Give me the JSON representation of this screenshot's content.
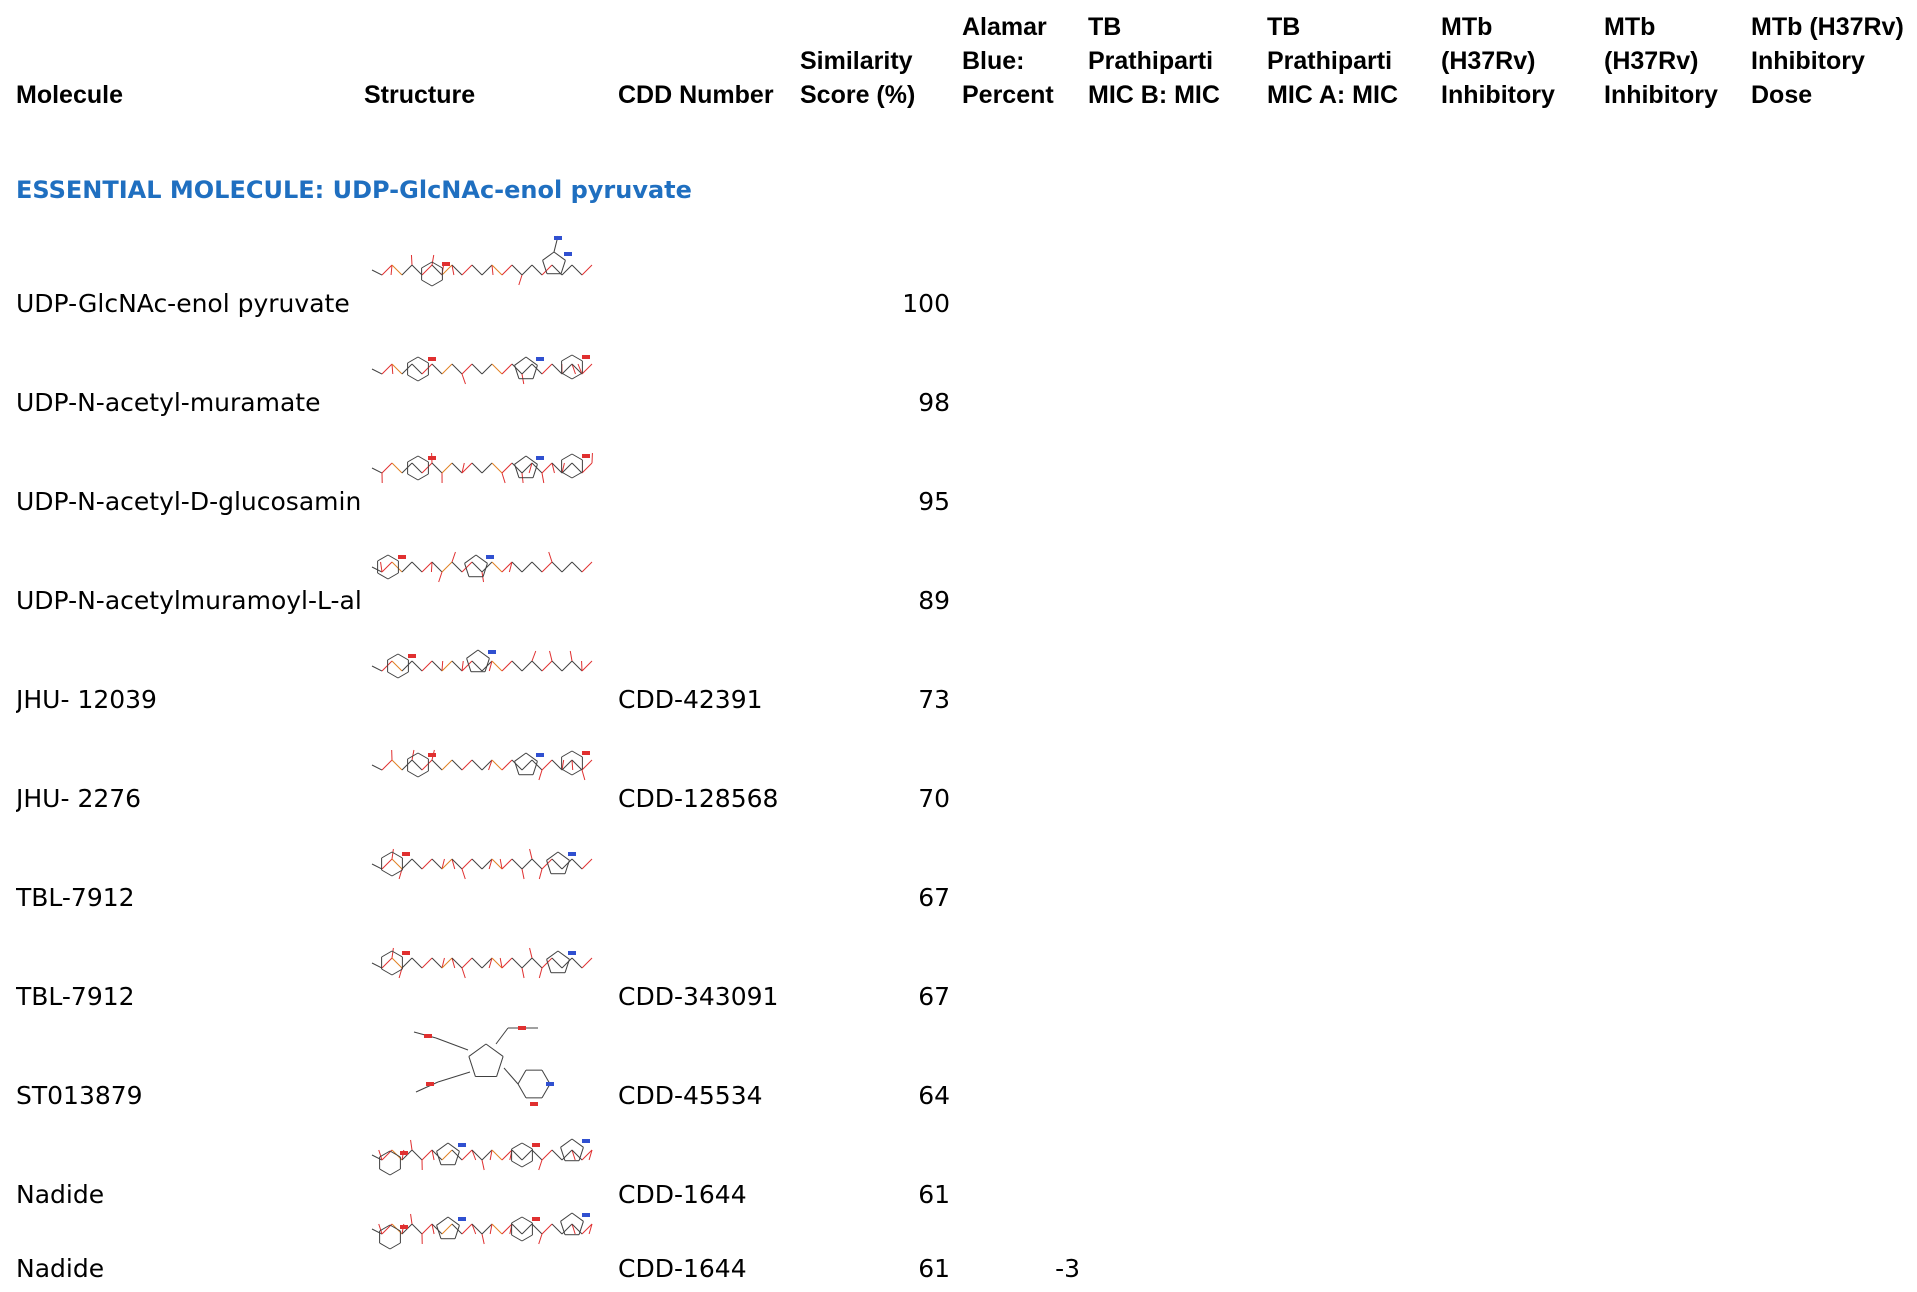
{
  "headers": {
    "molecule": [
      "Molecule"
    ],
    "structure": [
      "Structure"
    ],
    "cdd_number": [
      "CDD Number"
    ],
    "similarity": [
      "Similarity",
      "Score (%)"
    ],
    "alamar": [
      "Alamar",
      "Blue:",
      "Percent"
    ],
    "tb_mic_b": [
      "TB",
      "Prathiparti",
      "MIC B: MIC"
    ],
    "tb_mic_a": [
      "TB",
      "Prathiparti",
      "MIC A: MIC"
    ],
    "mtb_inhib_1": [
      "MTb",
      "(H37Rv)",
      "Inhibitory"
    ],
    "mtb_inhib_2": [
      "MTb",
      "(H37Rv)",
      "Inhibitory"
    ],
    "mtb_dose": [
      "MTb (H37Rv)",
      "Inhibitory",
      "Dose"
    ]
  },
  "section_title": "ESSENTIAL MOLECULE: UDP-GlcNAc-enol pyruvate",
  "rows": [
    {
      "molecule": "UDP-GlcNAc-enol pyruvate",
      "structure_icon": "molecule-structure-icon",
      "cdd": "",
      "similarity": "100",
      "alamar": ""
    },
    {
      "molecule": "UDP-N-acetyl-muramate",
      "structure_icon": "molecule-structure-icon",
      "cdd": "",
      "similarity": "98",
      "alamar": ""
    },
    {
      "molecule": "UDP-N-acetyl-D-glucosamine",
      "structure_icon": "molecule-structure-icon",
      "cdd": "",
      "similarity": "95",
      "alamar": ""
    },
    {
      "molecule": "UDP-N-acetylmuramoyl-L-ala",
      "structure_icon": "molecule-structure-icon",
      "cdd": "",
      "similarity": "89",
      "alamar": ""
    },
    {
      "molecule": "JHU- 12039",
      "structure_icon": "molecule-structure-icon",
      "cdd": "CDD-42391",
      "similarity": "73",
      "alamar": ""
    },
    {
      "molecule": "JHU- 2276",
      "structure_icon": "molecule-structure-icon",
      "cdd": "CDD-128568",
      "similarity": "70",
      "alamar": ""
    },
    {
      "molecule": "TBL-7912",
      "structure_icon": "molecule-structure-icon",
      "cdd": "",
      "similarity": "67",
      "alamar": ""
    },
    {
      "molecule": "TBL-7912",
      "structure_icon": "molecule-structure-icon",
      "cdd": "CDD-343091",
      "similarity": "67",
      "alamar": ""
    },
    {
      "molecule": "ST013879",
      "structure_icon": "molecule-structure-icon",
      "cdd": "CDD-45534",
      "similarity": "64",
      "alamar": ""
    },
    {
      "molecule": "Nadide",
      "structure_icon": "molecule-structure-icon",
      "cdd": "CDD-1644",
      "similarity": "61",
      "alamar": ""
    },
    {
      "molecule": "Nadide",
      "structure_icon": "molecule-structure-icon",
      "cdd": "CDD-1644",
      "similarity": "61",
      "alamar": "-3"
    }
  ],
  "colors": {
    "section": "#1f6fc0",
    "oxygen": "#e03030",
    "nitrogen": "#3050d0",
    "phosphorus": "#e08020",
    "bond": "#404040"
  }
}
